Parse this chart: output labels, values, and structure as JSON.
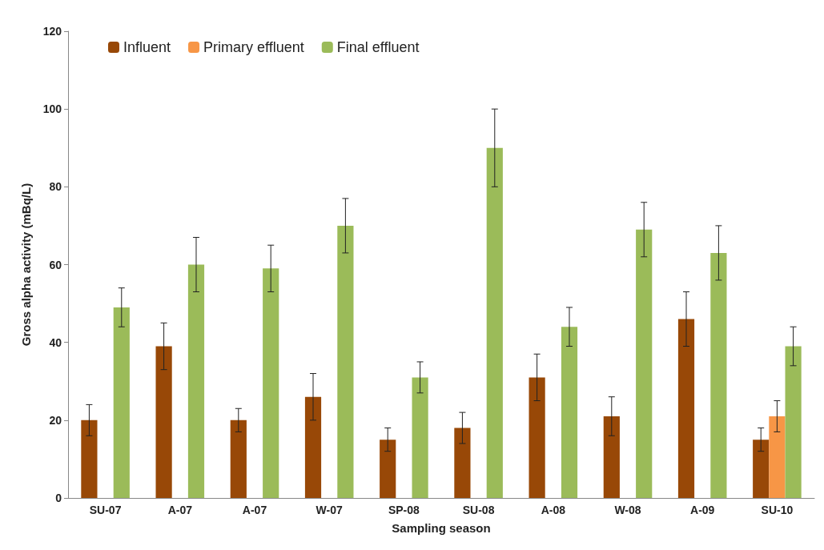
{
  "chart_data": {
    "type": "bar",
    "xlabel": "Sampling season",
    "ylabel": "Gross alpha activity (mBq/L)",
    "categories": [
      "SU-07",
      "A-07",
      "A-07",
      "W-07",
      "SP-08",
      "SU-08",
      "A-08",
      "W-08",
      "A-09",
      "SU-10"
    ],
    "series": [
      {
        "name": "Influent",
        "color": "#984807",
        "values": [
          20,
          39,
          20,
          26,
          15,
          18,
          31,
          21,
          46,
          15
        ],
        "errors": [
          4,
          6,
          3,
          6,
          3,
          4,
          6,
          5,
          7,
          3
        ]
      },
      {
        "name": "Primary effluent",
        "color": "#f79646",
        "values": [
          null,
          null,
          null,
          null,
          null,
          null,
          null,
          null,
          null,
          21
        ],
        "errors": [
          null,
          null,
          null,
          null,
          null,
          null,
          null,
          null,
          null,
          4
        ]
      },
      {
        "name": "Final effluent",
        "color": "#9bbb59",
        "values": [
          49,
          60,
          59,
          70,
          31,
          90,
          44,
          69,
          63,
          39
        ],
        "errors": [
          5,
          7,
          6,
          7,
          4,
          10,
          5,
          7,
          7,
          5
        ]
      }
    ],
    "ylim": [
      0,
      120
    ],
    "yticks": [
      0,
      20,
      40,
      60,
      80,
      100,
      120
    ],
    "grid": false,
    "legend": "top left"
  }
}
